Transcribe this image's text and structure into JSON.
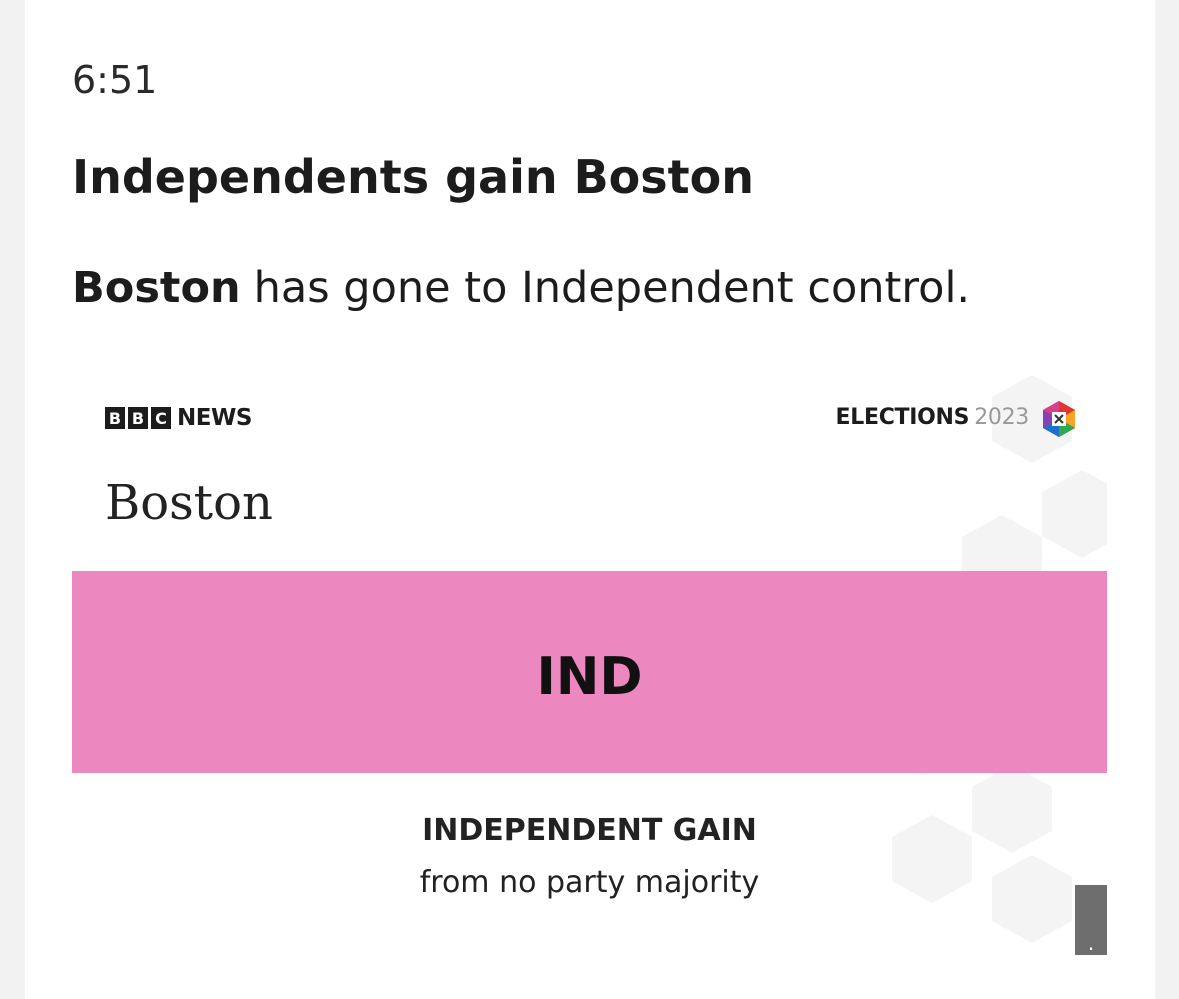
{
  "post": {
    "time": "6:51",
    "headline": "Independents gain Boston",
    "summary": {
      "bold": "Boston",
      "rest": "has gone to Independent control."
    }
  },
  "image": {
    "brand_letters": [
      "B",
      "B",
      "C"
    ],
    "brand_name": "NEWS",
    "event": "ELECTIONS",
    "year": "2023",
    "place": "Boston",
    "party": "IND",
    "result": "INDEPENDENT GAIN",
    "detail": "from no party majority",
    "caption_toggle": "."
  }
}
